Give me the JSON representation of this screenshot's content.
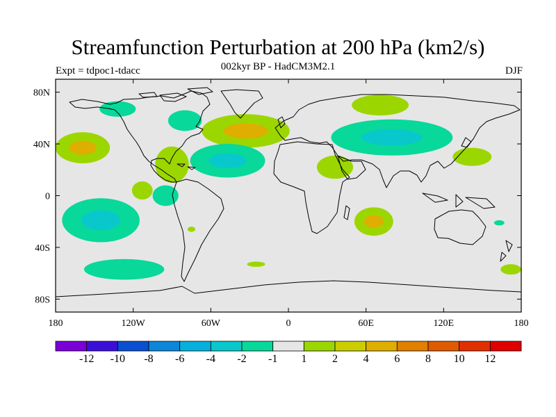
{
  "title": "Streamfunction Perturbation at 200 hPa (km2/s)",
  "subtitle": "002kyr BP - HadCM3M2.1",
  "expt": "Expt = tdpoc1-tdacc",
  "season": "DJF",
  "map": {
    "projection": "cylindrical-equidistant",
    "lon_ticks": [
      {
        "lon": -180,
        "label": "180"
      },
      {
        "lon": -120,
        "label": "120W"
      },
      {
        "lon": -60,
        "label": "60W"
      },
      {
        "lon": 0,
        "label": "0"
      },
      {
        "lon": 60,
        "label": "60E"
      },
      {
        "lon": 120,
        "label": "120E"
      },
      {
        "lon": 180,
        "label": "180"
      }
    ],
    "lat_ticks": [
      {
        "lat": 80,
        "label": "80N"
      },
      {
        "lat": 40,
        "label": "40N"
      },
      {
        "lat": 0,
        "label": "0"
      },
      {
        "lat": -40,
        "label": "40S"
      },
      {
        "lat": -80,
        "label": "80S"
      }
    ],
    "background_color": "#e6e6e6",
    "coastline_color": "#000000"
  },
  "anomalies": [
    {
      "name": "north-pacific-high",
      "lon": -159,
      "lat": 37,
      "rlon": 21,
      "rlat": 12,
      "level": 2,
      "peak": 4
    },
    {
      "name": "north-atlantic-high",
      "lon": -33,
      "lat": 50,
      "rlon": 34,
      "rlat": 13,
      "level": 2,
      "peak": 4
    },
    {
      "name": "gulf-of-mexico-high",
      "lon": -90,
      "lat": 24,
      "rlon": 13,
      "rlat": 14,
      "level": 2,
      "peak": 2
    },
    {
      "name": "east-pacific-high",
      "lon": -113,
      "lat": 4,
      "rlon": 8,
      "rlat": 7,
      "level": 2,
      "peak": 2
    },
    {
      "name": "central-atlantic-low",
      "lon": -47,
      "lat": 27,
      "rlon": 29,
      "rlat": 13,
      "level": -2,
      "peak": -4
    },
    {
      "name": "hudson-bay-low",
      "lon": -80,
      "lat": 58,
      "rlon": 13,
      "rlat": 8,
      "level": -2,
      "peak": -2
    },
    {
      "name": "central-pacific-low",
      "lon": -132,
      "lat": 67,
      "rlon": 14,
      "rlat": 6,
      "level": -2,
      "peak": -2
    },
    {
      "name": "eurasia-low",
      "lon": 80,
      "lat": 45,
      "rlon": 47,
      "rlat": 14,
      "level": -2,
      "peak": -4
    },
    {
      "name": "arabia-high",
      "lon": 36,
      "lat": 22,
      "rlon": 14,
      "rlat": 9,
      "level": 2,
      "peak": 2
    },
    {
      "name": "arctic-siberia-high",
      "lon": 71,
      "lat": 70,
      "rlon": 22,
      "rlat": 8,
      "level": 2,
      "peak": 2
    },
    {
      "name": "east-asia-high",
      "lon": 142,
      "lat": 30,
      "rlon": 15,
      "rlat": 7,
      "level": 2,
      "peak": 2
    },
    {
      "name": "indian-ocean-high",
      "lon": 66,
      "lat": -20,
      "rlon": 15,
      "rlat": 11,
      "level": 2,
      "peak": 4
    },
    {
      "name": "south-pacific-low",
      "lon": -145,
      "lat": -19,
      "rlon": 30,
      "rlat": 17,
      "level": -2,
      "peak": -4
    },
    {
      "name": "south-america-low",
      "lon": -95,
      "lat": 0,
      "rlon": 10,
      "rlat": 8,
      "level": -2,
      "peak": -2
    },
    {
      "name": "southern-ocean-low",
      "lon": -127,
      "lat": -57,
      "rlon": 31,
      "rlat": 8,
      "level": -2,
      "peak": -2
    },
    {
      "name": "south-atlantic-high",
      "lon": -25,
      "lat": -53,
      "rlon": 7,
      "rlat": 2,
      "level": 2,
      "peak": 2
    },
    {
      "name": "brazil-high",
      "lon": -75,
      "lat": -26,
      "rlon": 3,
      "rlat": 2,
      "level": 2,
      "peak": 2
    },
    {
      "name": "tasman-high",
      "lon": 172,
      "lat": -57,
      "rlon": 8,
      "rlat": 4,
      "level": 2,
      "peak": 2
    },
    {
      "name": "coral-sea-low",
      "lon": 163,
      "lat": -21,
      "rlon": 4,
      "rlat": 2,
      "level": -2,
      "peak": -2
    }
  ],
  "colorbar": {
    "colors": [
      "#7b00d8",
      "#3c0fd8",
      "#0a4fd0",
      "#0b86d8",
      "#06b0dc",
      "#09c8cc",
      "#08d89a",
      "#e6e6e6",
      "#9cd600",
      "#cace00",
      "#deae00",
      "#e07f00",
      "#e05a00",
      "#e03000",
      "#e00000"
    ],
    "labels": [
      "-12",
      "-10",
      "-8",
      "-6",
      "-4",
      "-2",
      "-1",
      "1",
      "2",
      "4",
      "6",
      "8",
      "10",
      "12"
    ]
  }
}
